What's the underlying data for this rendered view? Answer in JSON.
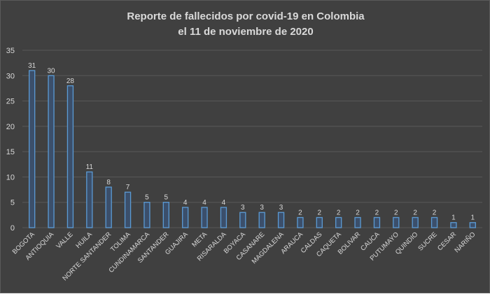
{
  "chart_data": {
    "type": "bar",
    "title_line1": "Reporte de fallecidos por covid-19 en Colombia",
    "title_line2": "el 11 de noviembre de 2020",
    "xlabel": "",
    "ylabel": "",
    "ylim": [
      0,
      35
    ],
    "yticks": [
      0,
      5,
      10,
      15,
      20,
      25,
      30,
      35
    ],
    "grid": true,
    "legend": "none",
    "categories": [
      "BOGOTA",
      "ANTIOQUIA",
      "VALLE",
      "HUILA",
      "NORTE SANTANDER",
      "TOLIMA",
      "CUNDINAMARCA",
      "SANTANDER",
      "GUAJIRA",
      "META",
      "RISARALDA",
      "BOYACA",
      "CASANARE",
      "MAGDALENA",
      "ARAUCA",
      "CALDAS",
      "CAQUETA",
      "BOLIVAR",
      "CAUCA",
      "PUTUMAYO",
      "QUINDIO",
      "SUCRE",
      "CESAR",
      "NARIÑO"
    ],
    "values": [
      31,
      30,
      28,
      11,
      8,
      7,
      5,
      5,
      4,
      4,
      4,
      3,
      3,
      3,
      2,
      2,
      2,
      2,
      2,
      2,
      2,
      2,
      1,
      1
    ],
    "colors": {
      "background": "#404040",
      "bar_fill": "#3b4f6b",
      "bar_edge": "#5b9bd5",
      "gridline": "#595959",
      "text": "#d9d9d9"
    }
  }
}
